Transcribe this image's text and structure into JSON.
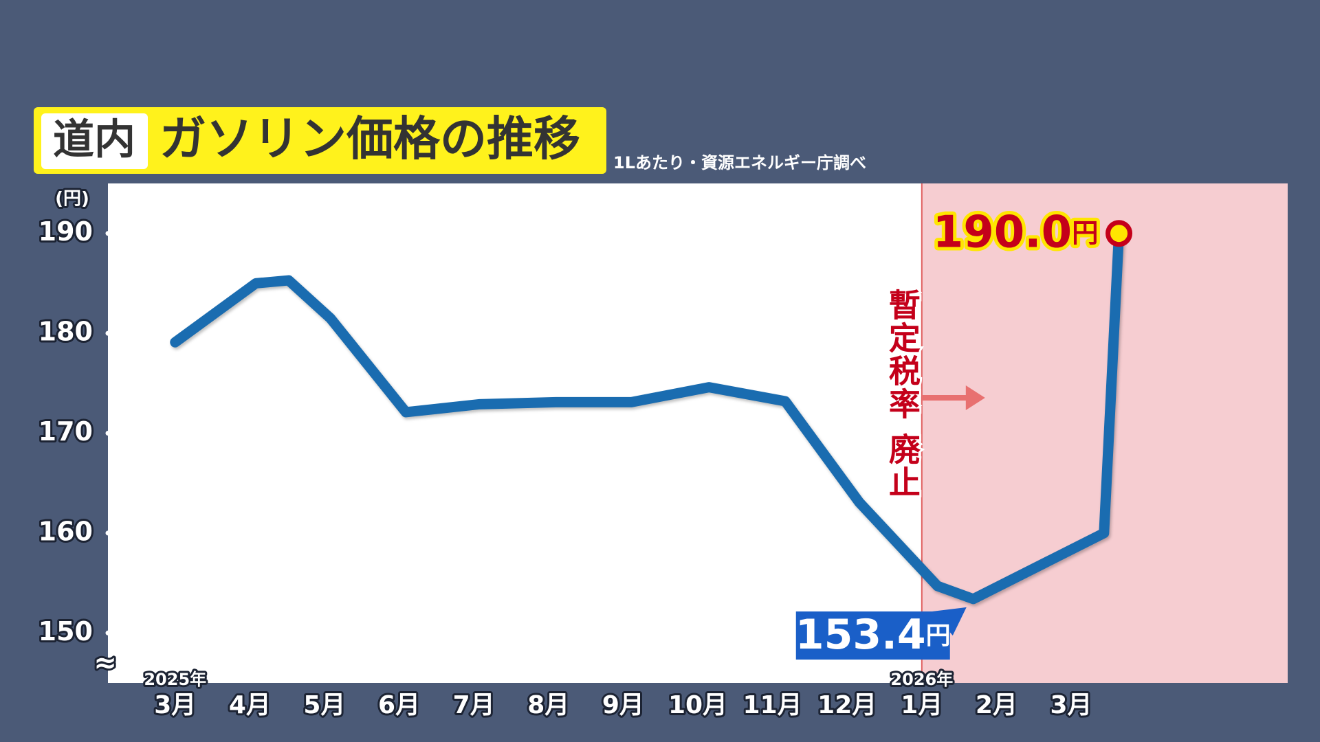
{
  "chart_data": {
    "type": "line",
    "badge": "道内",
    "title": "ガソリン価格の推移",
    "subtitle": "1Lあたり・資源エネルギー庁調べ",
    "y_unit": "(円)",
    "annotation": "暫定税率 廃止",
    "x": [
      0,
      1.08,
      1.52,
      2.08,
      3.09,
      4.08,
      5.1,
      6.11,
      7.15,
      8.17,
      9.16,
      10.21,
      10.69,
      12.44,
      12.64
    ],
    "values": [
      179.1,
      185.0,
      185.3,
      181.5,
      172.1,
      172.9,
      173.1,
      173.1,
      174.6,
      173.2,
      163.1,
      154.7,
      153.4,
      160.0,
      190.0
    ],
    "value_labels": [
      null,
      null,
      null,
      null,
      null,
      null,
      null,
      null,
      null,
      null,
      null,
      null,
      "153.4円",
      null,
      "190.0円"
    ],
    "color": "#1a6cb0",
    "xlim": [
      -0.9,
      14.9
    ],
    "ylim": [
      145,
      195
    ],
    "xticks": [
      {
        "value": 0,
        "label": "3月"
      },
      {
        "value": 1,
        "label": "4月"
      },
      {
        "value": 2,
        "label": "5月"
      },
      {
        "value": 3,
        "label": "6月"
      },
      {
        "value": 4,
        "label": "7月"
      },
      {
        "value": 5,
        "label": "8月"
      },
      {
        "value": 6,
        "label": "9月"
      },
      {
        "value": 7,
        "label": "10月"
      },
      {
        "value": 8,
        "label": "11月"
      },
      {
        "value": 9,
        "label": "12月"
      },
      {
        "value": 10,
        "label": "1月"
      },
      {
        "value": 11,
        "label": "2月"
      },
      {
        "value": 12,
        "label": "3月"
      }
    ],
    "year_labels": [
      {
        "value": 0,
        "label": "2025年"
      },
      {
        "value": 10,
        "label": "2026年"
      }
    ],
    "yticks": [
      150,
      160,
      170,
      180,
      190
    ],
    "shade_from": 10,
    "shade_color": "#f6cdd1"
  }
}
